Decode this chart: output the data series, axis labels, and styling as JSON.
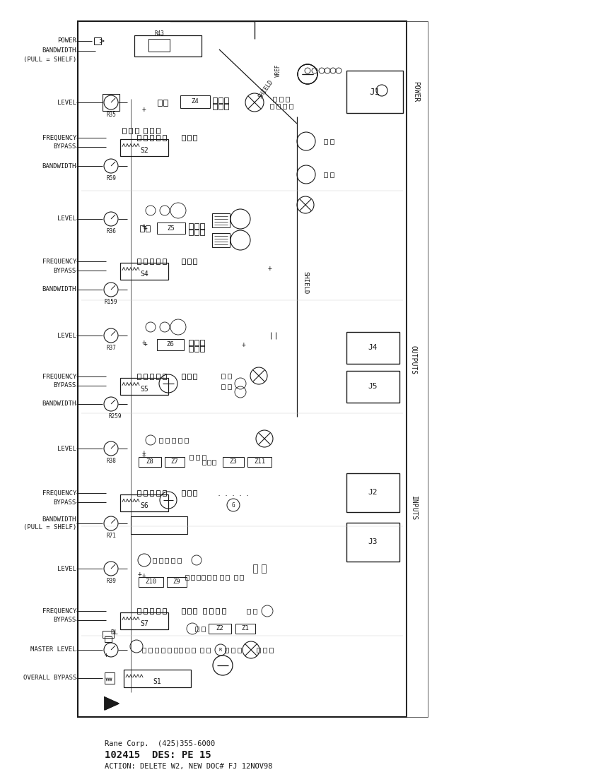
{
  "bg_color": "#ffffff",
  "line_color": "#1a1a1a",
  "footer_lines": [
    "Rane Corp.  (425)355-6000",
    "102415  DES: PE 15",
    "ACTION: DELETE W2, NEW DOC# FJ 12NOV98"
  ]
}
